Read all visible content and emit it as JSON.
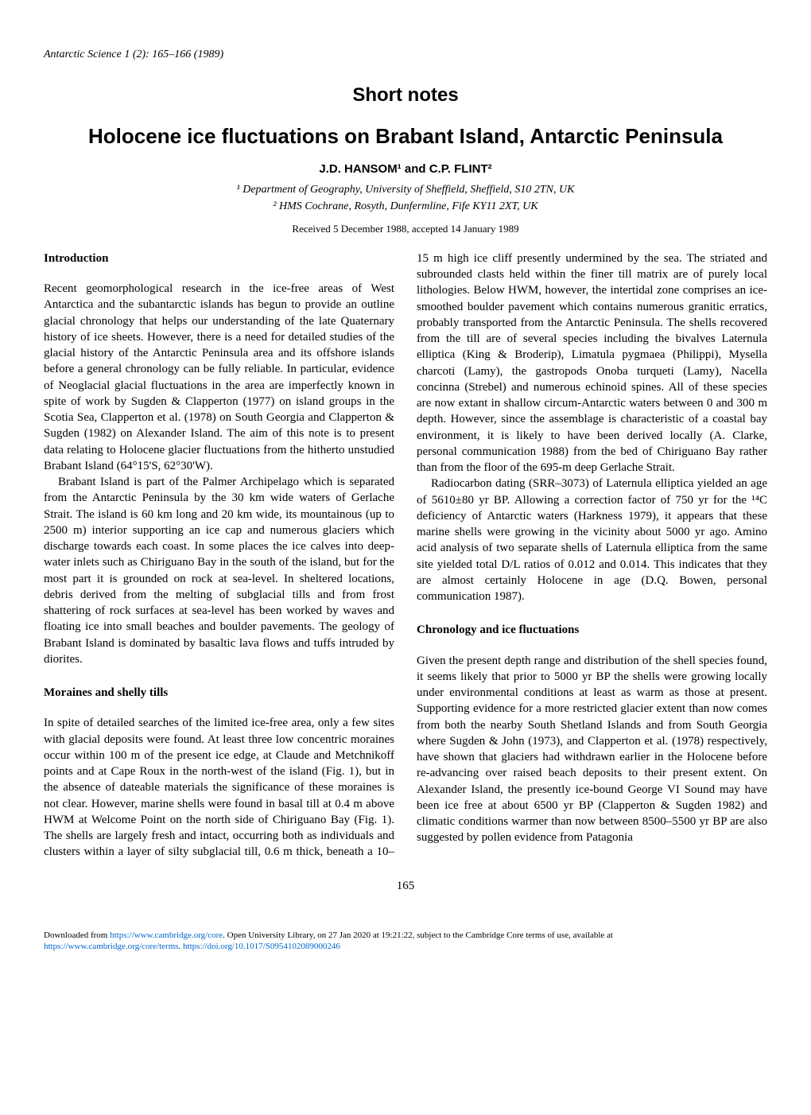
{
  "journal_ref": "Antarctic Science 1 (2): 165–166 (1989)",
  "section_label": "Short notes",
  "title": "Holocene ice fluctuations on Brabant Island, Antarctic Peninsula",
  "authors": "J.D. HANSOM¹ and C.P. FLINT²",
  "affiliations": [
    "¹ Department of Geography, University of Sheffield, Sheffield, S10 2TN, UK",
    "² HMS Cochrane, Rosyth, Dunfermline, Fife KY11 2XT, UK"
  ],
  "received": "Received 5 December 1988, accepted 14 January 1989",
  "headings": {
    "introduction": "Introduction",
    "moraines": "Moraines and shelly tills",
    "chronology": "Chronology and ice fluctuations"
  },
  "body": {
    "intro_p1": "Recent geomorphological research in the ice-free areas of West Antarctica and the subantarctic islands has begun to provide an outline glacial chronology that helps our understanding of the late Quaternary history of ice sheets. However, there is a need for detailed studies of the glacial history of the Antarctic Peninsula area and its offshore islands before a general chronology can be fully reliable. In particular, evidence of Neoglacial glacial fluctuations in the area are imperfectly known in spite of work by Sugden & Clapperton (1977) on island groups in the Scotia Sea, Clapperton et al. (1978) on South Georgia and Clapperton & Sugden (1982) on Alexander Island. The aim of this note is to present data relating to Holocene glacier fluctuations from the hitherto unstudied Brabant Island (64°15'S, 62°30'W).",
    "intro_p2": "Brabant Island is part of the Palmer Archipelago which is separated from the Antarctic Peninsula by the 30 km wide waters of Gerlache Strait. The island is 60 km long and 20 km wide, its mountainous (up to 2500 m) interior supporting an ice cap and numerous glaciers which discharge towards each coast. In some places the ice calves into deep-water inlets such as Chiriguano Bay in the south of the island, but for the most part it is grounded on rock at sea-level. In sheltered locations, debris derived from the melting of subglacial tills and from frost shattering of rock surfaces at sea-level has been worked by waves and floating ice into small beaches and boulder pavements. The geology of Brabant Island is dominated by basaltic lava flows and tuffs intruded by diorites.",
    "moraines_p1": "In spite of detailed searches of the limited ice-free area, only a few sites with glacial deposits were found. At least three low concentric moraines occur within 100 m of the present ice edge, at Claude and Metchnikoff points and at Cape Roux in the north-west of the island (Fig. 1), but in the absence of dateable materials the significance of these moraines is not clear. However, marine shells were found in basal till at 0.4 m above HWM at Welcome Point on the north side of Chiriguano Bay (Fig. 1). The shells are largely fresh and intact, occurring both as individuals and clusters within a layer of silty subglacial till, 0.6 m thick, beneath a 10–15 m high ice cliff presently undermined by the sea. The striated and subrounded clasts held within the finer till matrix are of purely local lithologies. Below HWM, however, the intertidal zone comprises an ice-smoothed boulder pavement which contains numerous granitic erratics, probably transported from the Antarctic Peninsula. The shells recovered from the till are of several species including the bivalves Laternula elliptica (King & Broderip), Limatula pygmaea (Philippi), Mysella charcoti (Lamy), the gastropods Onoba turqueti (Lamy), Nacella concinna (Strebel) and numerous echinoid spines. All of these species are now extant in shallow circum-Antarctic waters between 0 and 300 m depth. However, since the assemblage is characteristic of a coastal bay environment, it is likely to have been derived locally (A. Clarke, personal communication 1988) from the bed of Chiriguano Bay rather than from the floor of the 695-m deep Gerlache Strait.",
    "moraines_p2": "Radiocarbon dating (SRR–3073) of Laternula elliptica yielded an age of 5610±80 yr BP. Allowing a correction factor of 750 yr for the ¹⁴C deficiency of Antarctic waters (Harkness 1979), it appears that these marine shells were growing in the vicinity about 5000 yr ago. Amino acid analysis of two separate shells of Laternula elliptica from the same site yielded total D/L ratios of 0.012 and 0.014. This indicates that they are almost certainly Holocene in age (D.Q. Bowen, personal communication 1987).",
    "chronology_p1": "Given the present depth range and distribution of the shell species found, it seems likely that prior to 5000 yr BP the shells were growing locally under environmental conditions at least as warm as those at present. Supporting evidence for a more restricted glacier extent than now comes from both the nearby South Shetland Islands and from South Georgia where Sugden & John (1973), and Clapperton et al. (1978) respectively, have shown that glaciers had withdrawn earlier in the Holocene before re-advancing over raised beach deposits to their present extent. On Alexander Island, the presently ice-bound George VI Sound may have been ice free at about 6500 yr BP (Clapperton & Sugden 1982) and climatic conditions warmer than now between 8500–5500 yr BP are also suggested by pollen evidence from Patagonia"
  },
  "page_number": "165",
  "footer": {
    "line1_pre": "Downloaded from ",
    "link1": "https://www.cambridge.org/core",
    "line1_post": ". Open University Library, on 27 Jan 2020 at 19:21:22, subject to the Cambridge Core terms of use, available at",
    "link2": "https://www.cambridge.org/core/terms",
    "sep": ". ",
    "link3": "https://doi.org/10.1017/S0954102089000246"
  }
}
